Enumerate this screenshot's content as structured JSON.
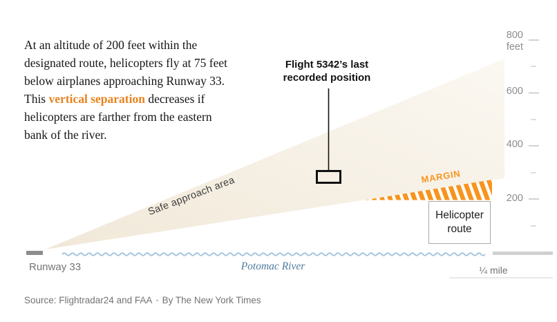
{
  "intro": {
    "before": "At an altitude of 200 feet within the designated route, helicopters fly at 75 feet below airplanes approaching Runway 33. This ",
    "highlight": "vertical separation",
    "after": " decreases if helicopters are farther from the eastern bank of the river."
  },
  "labels": {
    "flight_annotation": "Flight 5342’s last recorded position",
    "safe_area": "Safe approach area",
    "margin": "MARGIN",
    "helicopter_route": "Helicopter route",
    "runway": "Runway 33",
    "river": "Potomac River",
    "scale": "¼ mile"
  },
  "yaxis": {
    "unit": "feet",
    "labels": [
      "800",
      "600",
      "400",
      "200"
    ]
  },
  "source": {
    "text": "Source: Flightradar24 and FAA",
    "separator": "•",
    "byline": "By The New York Times"
  },
  "colors": {
    "highlight_orange": "#e8831d",
    "margin_orange": "#f7941d",
    "safe_area_beige": "#f2e9da",
    "river_blue": "#a4c5df",
    "river_text_blue": "#4e7b9e",
    "runway_gray": "#8c8c8c",
    "land_gray": "#d0d0d0",
    "axis_gray": "#8c8c8c"
  },
  "chart_data": {
    "type": "area",
    "title": "",
    "yaxis_unit": "feet",
    "yaxis_range": [
      0,
      800
    ],
    "yaxis_labeled_ticks": [
      800,
      600,
      400,
      200
    ],
    "yaxis_minor_ticks": [
      700,
      500,
      300,
      100
    ],
    "x_scale_bar": "¼ mile",
    "regions": [
      {
        "name": "Safe approach area",
        "shape": "wedge from Runway 33 threshold widening toward the eastern bank",
        "lower_edge_altitude_ft": [
          0,
          280
        ],
        "upper_edge_altitude_ft": [
          0,
          730
        ]
      },
      {
        "name": "MARGIN",
        "shape": "hatched wedge between bottom of safe approach area and helicopter route ceiling",
        "margin_ft_stated": 75
      },
      {
        "name": "Helicopter route",
        "shape": "box along eastern bank of the river",
        "ceiling_ft": 200
      }
    ],
    "annotations": [
      {
        "label": "Flight 5342’s last recorded position",
        "approx_altitude_ft": 290,
        "marker": "open black rectangle with leader line"
      }
    ],
    "ground_features": [
      "Runway 33",
      "Potomac River",
      "eastern bank"
    ]
  }
}
